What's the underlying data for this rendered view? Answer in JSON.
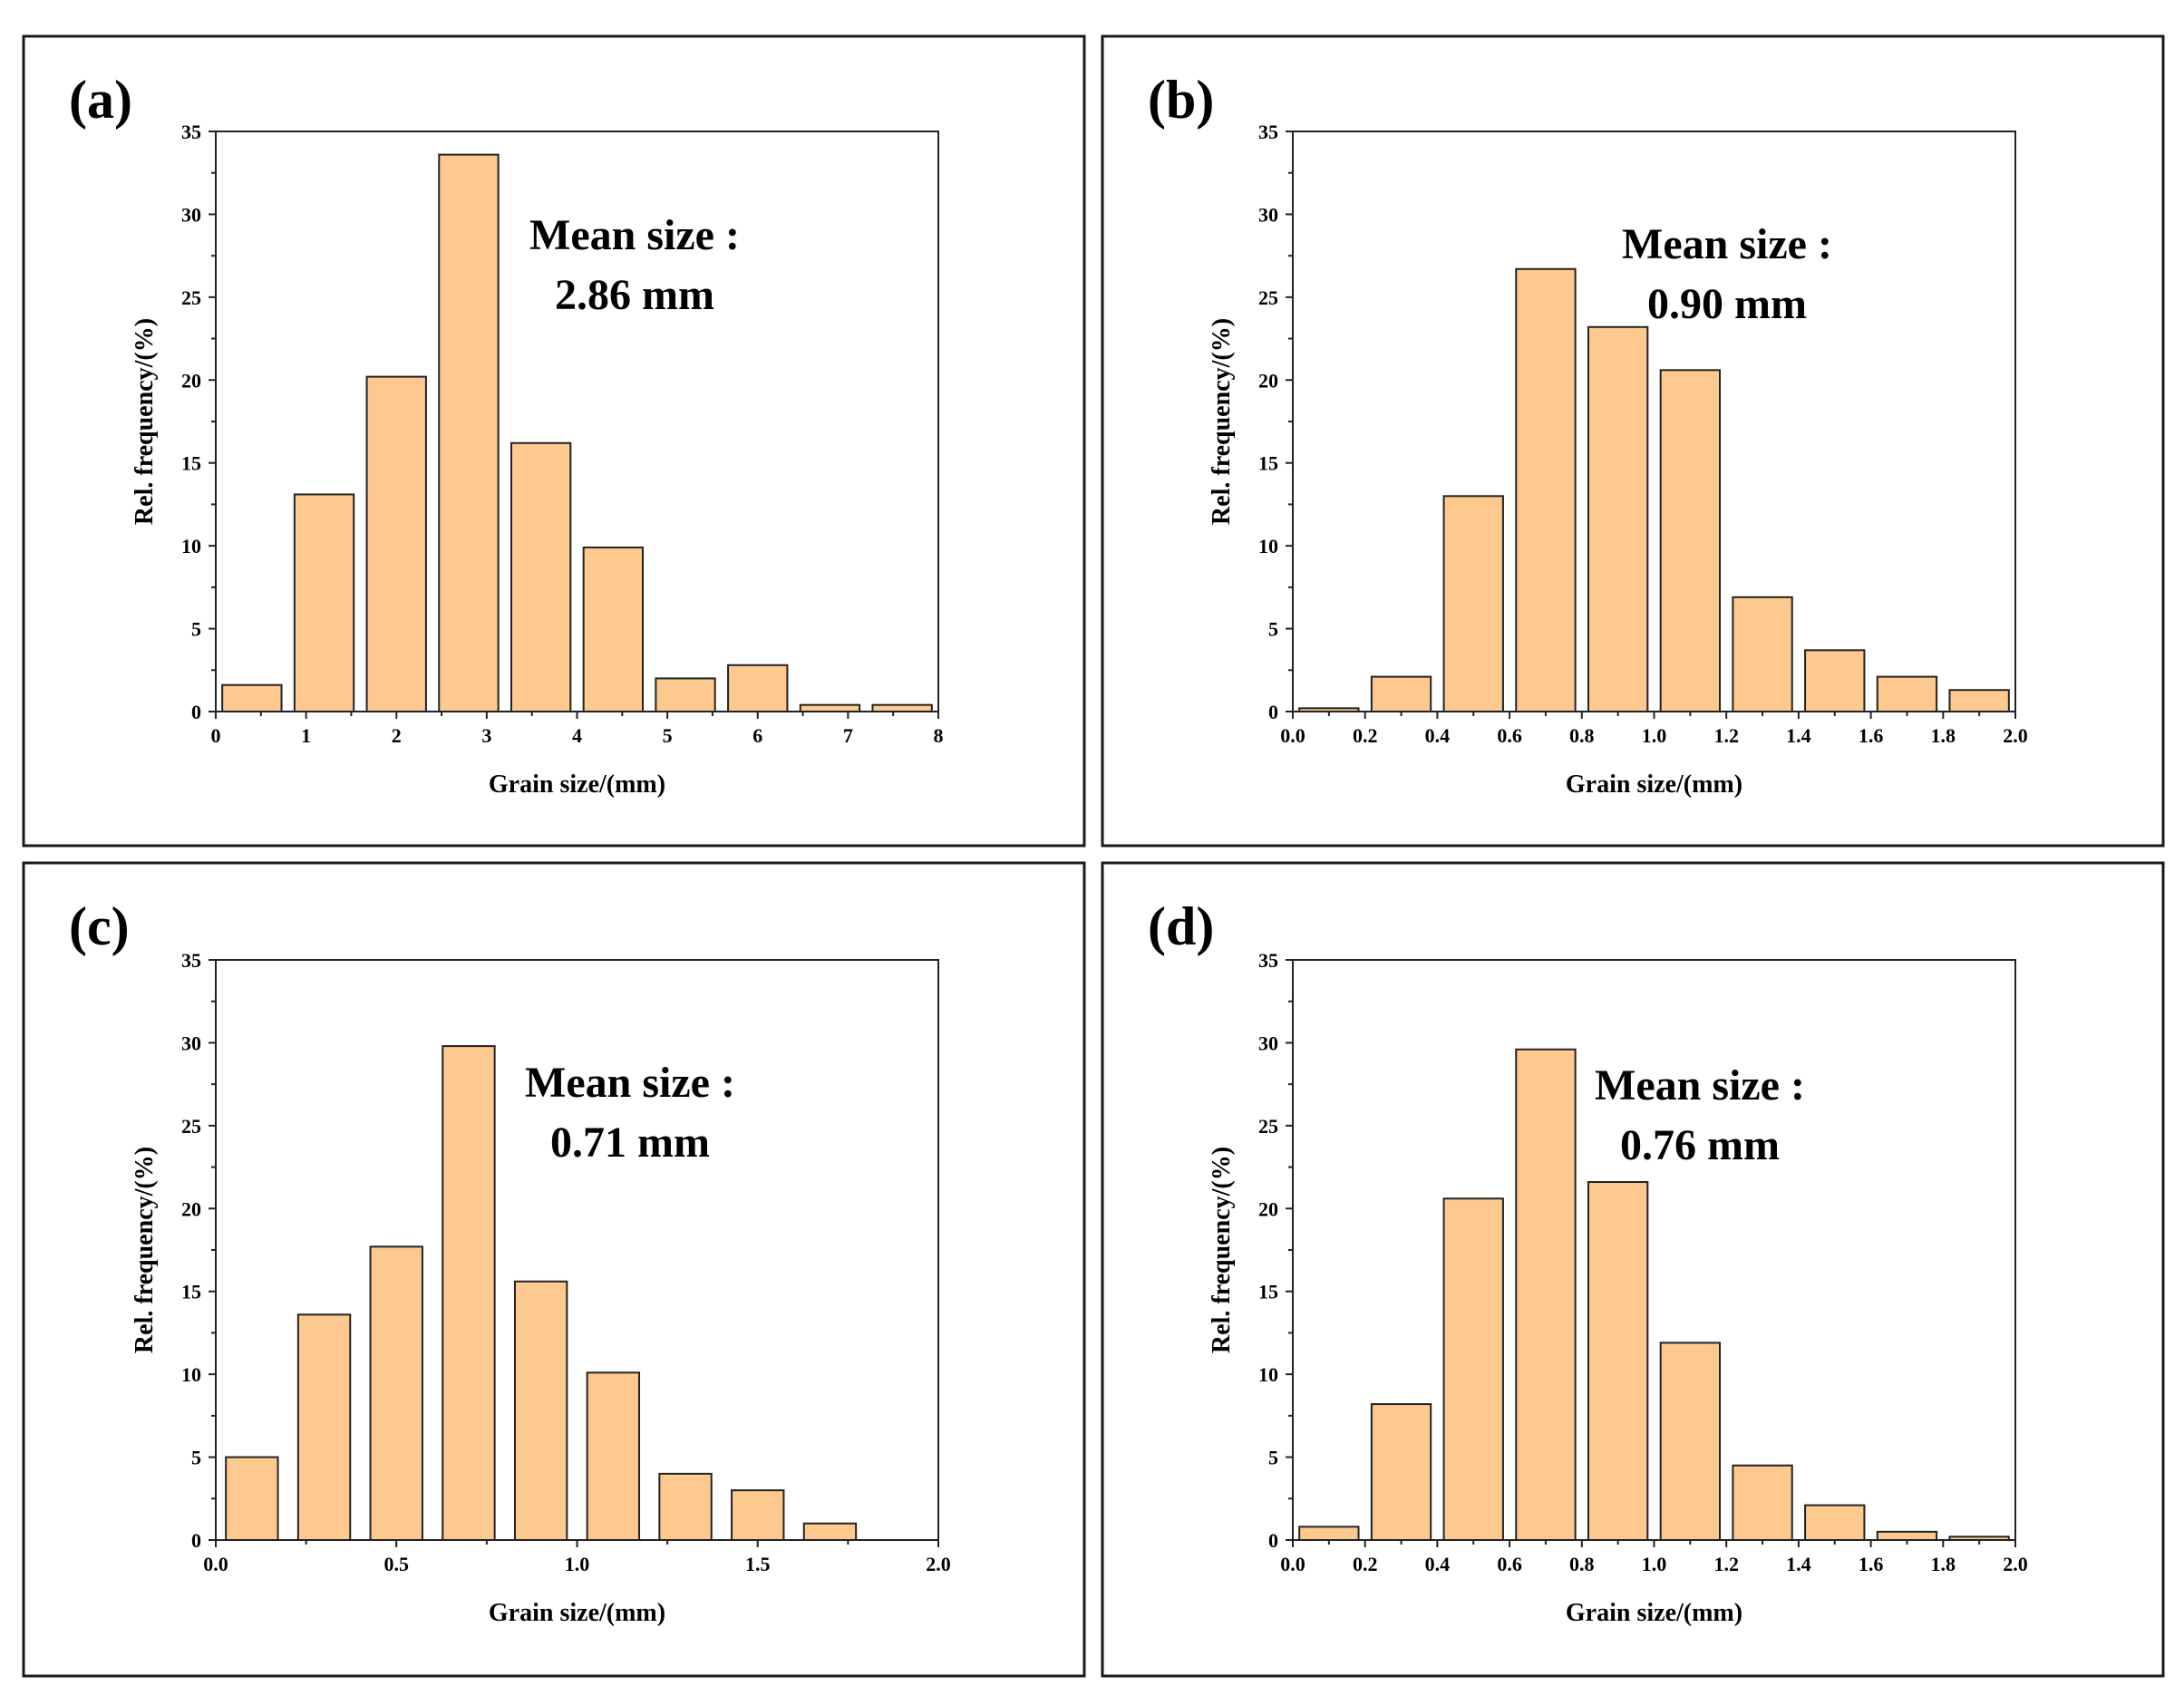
{
  "figure": {
    "colors": {
      "bar_fill": "#fdc98f",
      "bar_stroke": "#222222",
      "frame": "#1a1a1a"
    }
  },
  "chart_data": [
    {
      "panel": "(a)",
      "type": "bar",
      "title": "",
      "xlabel": "Grain size/(mm)",
      "ylabel": "Rel. frequency/(%)",
      "xlim": [
        0,
        8
      ],
      "ylim": [
        0,
        35
      ],
      "xticks": [
        0,
        1,
        2,
        3,
        4,
        5,
        6,
        7,
        8
      ],
      "xtick_labels": [
        "0",
        "1",
        "2",
        "3",
        "4",
        "5",
        "6",
        "7",
        "8"
      ],
      "yticks": [
        0,
        5,
        10,
        15,
        20,
        25,
        30,
        35
      ],
      "ytick_labels": [
        "0",
        "5",
        "10",
        "15",
        "20",
        "25",
        "30",
        "35"
      ],
      "bin_width": 0.8,
      "bar_width_frac": 0.82,
      "bins": [
        0,
        0.8,
        1.6,
        2.4,
        3.2,
        4.0,
        4.8,
        5.6,
        6.4,
        7.2
      ],
      "values": [
        1.6,
        13.1,
        20.2,
        33.6,
        16.2,
        9.9,
        2.0,
        2.8,
        0.4,
        0.4
      ],
      "annotation": [
        "Mean size :",
        "2.86 mm"
      ]
    },
    {
      "panel": "(b)",
      "type": "bar",
      "title": "",
      "xlabel": "Grain size/(mm)",
      "ylabel": "Rel. frequency/(%)",
      "xlim": [
        0,
        2
      ],
      "ylim": [
        0,
        35
      ],
      "xticks": [
        0,
        0.2,
        0.4,
        0.6,
        0.8,
        1.0,
        1.2,
        1.4,
        1.6,
        1.8,
        2.0
      ],
      "xtick_labels": [
        "0.0",
        "0.2",
        "0.4",
        "0.6",
        "0.8",
        "1.0",
        "1.2",
        "1.4",
        "1.6",
        "1.8",
        "2.0"
      ],
      "yticks": [
        0,
        5,
        10,
        15,
        20,
        25,
        30,
        35
      ],
      "ytick_labels": [
        "0",
        "5",
        "10",
        "15",
        "20",
        "25",
        "30",
        "35"
      ],
      "bin_width": 0.2,
      "bar_width_frac": 0.82,
      "bins": [
        0,
        0.2,
        0.4,
        0.6,
        0.8,
        1.0,
        1.2,
        1.4,
        1.6,
        1.8
      ],
      "values": [
        0.2,
        2.1,
        13.0,
        26.7,
        23.2,
        20.6,
        6.9,
        3.7,
        2.1,
        1.3
      ],
      "annotation": [
        "Mean size :",
        "0.90 mm"
      ]
    },
    {
      "panel": "(c)",
      "type": "bar",
      "title": "",
      "xlabel": "Grain size/(mm)",
      "ylabel": "Rel. frequency/(%)",
      "xlim": [
        0,
        2
      ],
      "ylim": [
        0,
        35
      ],
      "xticks": [
        0,
        0.5,
        1.0,
        1.5,
        2.0
      ],
      "xtick_labels": [
        "0.0",
        "0.5",
        "1.0",
        "1.5",
        "2.0"
      ],
      "yticks": [
        0,
        5,
        10,
        15,
        20,
        25,
        30,
        35
      ],
      "ytick_labels": [
        "0",
        "5",
        "10",
        "15",
        "20",
        "25",
        "30",
        "35"
      ],
      "bin_width": 0.2,
      "bar_width_frac": 0.72,
      "bins": [
        0,
        0.2,
        0.4,
        0.6,
        0.8,
        1.0,
        1.2,
        1.4,
        1.6
      ],
      "values": [
        5.0,
        13.6,
        17.7,
        29.8,
        15.6,
        10.1,
        4.0,
        3.0,
        1.0
      ],
      "annotation": [
        "Mean size :",
        "0.71 mm"
      ]
    },
    {
      "panel": "(d)",
      "type": "bar",
      "title": "",
      "xlabel": "Grain size/(mm)",
      "ylabel": "Rel. frequency/(%)",
      "xlim": [
        0,
        2
      ],
      "ylim": [
        0,
        35
      ],
      "xticks": [
        0,
        0.2,
        0.4,
        0.6,
        0.8,
        1.0,
        1.2,
        1.4,
        1.6,
        1.8,
        2.0
      ],
      "xtick_labels": [
        "0.0",
        "0.2",
        "0.4",
        "0.6",
        "0.8",
        "1.0",
        "1.2",
        "1.4",
        "1.6",
        "1.8",
        "2.0"
      ],
      "yticks": [
        0,
        5,
        10,
        15,
        20,
        25,
        30,
        35
      ],
      "ytick_labels": [
        "0",
        "5",
        "10",
        "15",
        "20",
        "25",
        "30",
        "35"
      ],
      "bin_width": 0.2,
      "bar_width_frac": 0.82,
      "bins": [
        0,
        0.2,
        0.4,
        0.6,
        0.8,
        1.0,
        1.2,
        1.4,
        1.6,
        1.8
      ],
      "values": [
        0.8,
        8.2,
        20.6,
        29.6,
        21.6,
        11.9,
        4.5,
        2.1,
        0.5,
        0.2
      ],
      "annotation": [
        "Mean size :",
        "0.76 mm"
      ]
    }
  ]
}
